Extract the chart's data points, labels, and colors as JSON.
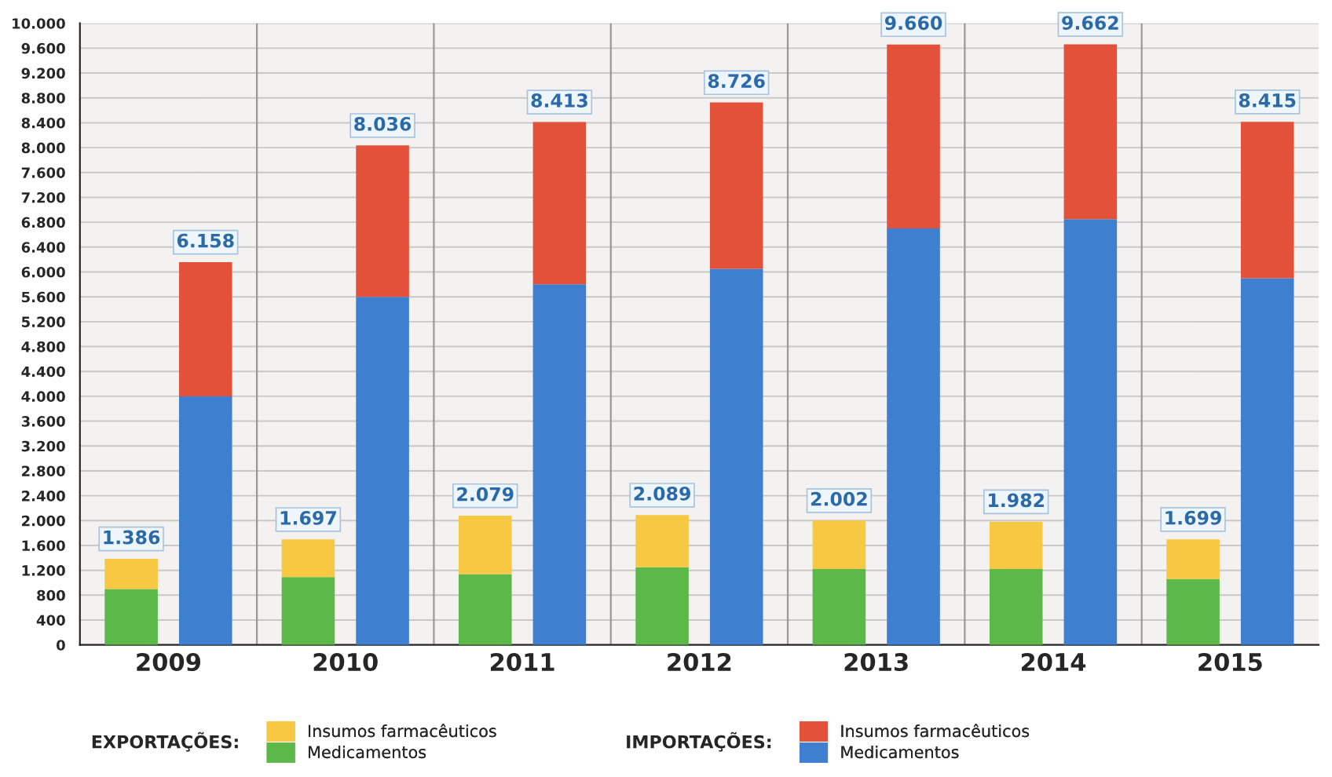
{
  "chart_data": [
    {
      "type": "bar",
      "stacked": true,
      "categories": [
        "2009",
        "2010",
        "2011",
        "2012",
        "2013",
        "2014",
        "2015"
      ],
      "series": [
        {
          "name": "Medicamentos",
          "color": "#5cb848",
          "values": [
            900,
            1090,
            1140,
            1250,
            1220,
            1220,
            1060
          ]
        },
        {
          "name": "Insumos farmacêuticos",
          "color": "#f7c842",
          "values": [
            486,
            607,
            939,
            839,
            782,
            762,
            639
          ]
        }
      ],
      "totals": [
        "1.386",
        "1.697",
        "2.079",
        "2.089",
        "2.002",
        "1.982",
        "1.699"
      ],
      "legend_title": "EXPORTAÇÕES:",
      "ylim": [
        0,
        10000
      ],
      "yticks": [
        {
          "value": 0,
          "label": "0"
        },
        {
          "value": 400,
          "label": "400"
        },
        {
          "value": 800,
          "label": "800"
        },
        {
          "value": 1200,
          "label": "1.200"
        },
        {
          "value": 1600,
          "label": "1.600"
        },
        {
          "value": 2000,
          "label": "2.000"
        },
        {
          "value": 2400,
          "label": "2.400"
        },
        {
          "value": 2800,
          "label": "2.800"
        },
        {
          "value": 3200,
          "label": "3.200"
        },
        {
          "value": 3600,
          "label": "3.600"
        },
        {
          "value": 4000,
          "label": "4.000"
        },
        {
          "value": 4400,
          "label": "4.400"
        },
        {
          "value": 4800,
          "label": "4.800"
        },
        {
          "value": 5200,
          "label": "5.200"
        },
        {
          "value": 5600,
          "label": "5.600"
        },
        {
          "value": 6000,
          "label": "6.000"
        },
        {
          "value": 6400,
          "label": "6.400"
        },
        {
          "value": 6800,
          "label": "6.800"
        },
        {
          "value": 7200,
          "label": "7.200"
        },
        {
          "value": 7600,
          "label": "7.600"
        },
        {
          "value": 8000,
          "label": "8.000"
        },
        {
          "value": 8400,
          "label": "8.400"
        },
        {
          "value": 8800,
          "label": "8.800"
        },
        {
          "value": 9200,
          "label": "9.200"
        },
        {
          "value": 9600,
          "label": "9.600"
        },
        {
          "value": 10000,
          "label": "10.000"
        }
      ],
      "grid": true,
      "legend": "bottom"
    },
    {
      "type": "bar",
      "stacked": true,
      "categories": [
        "2009",
        "2010",
        "2011",
        "2012",
        "2013",
        "2014",
        "2015"
      ],
      "series": [
        {
          "name": "Medicamentos",
          "color": "#3f7fcf",
          "values": [
            4000,
            5600,
            5800,
            6050,
            6700,
            6850,
            5900
          ]
        },
        {
          "name": "Insumos farmacêuticos",
          "color": "#e4513a",
          "values": [
            2158,
            2436,
            2613,
            2676,
            2960,
            2812,
            2515
          ]
        }
      ],
      "totals": [
        "6.158",
        "8.036",
        "8.413",
        "8.726",
        "9.660",
        "9.662",
        "8.415"
      ],
      "legend_title": "IMPORTAÇÕES:",
      "ylim": [
        0,
        10000
      ],
      "tick_labels": false,
      "legend": "bottom"
    }
  ]
}
